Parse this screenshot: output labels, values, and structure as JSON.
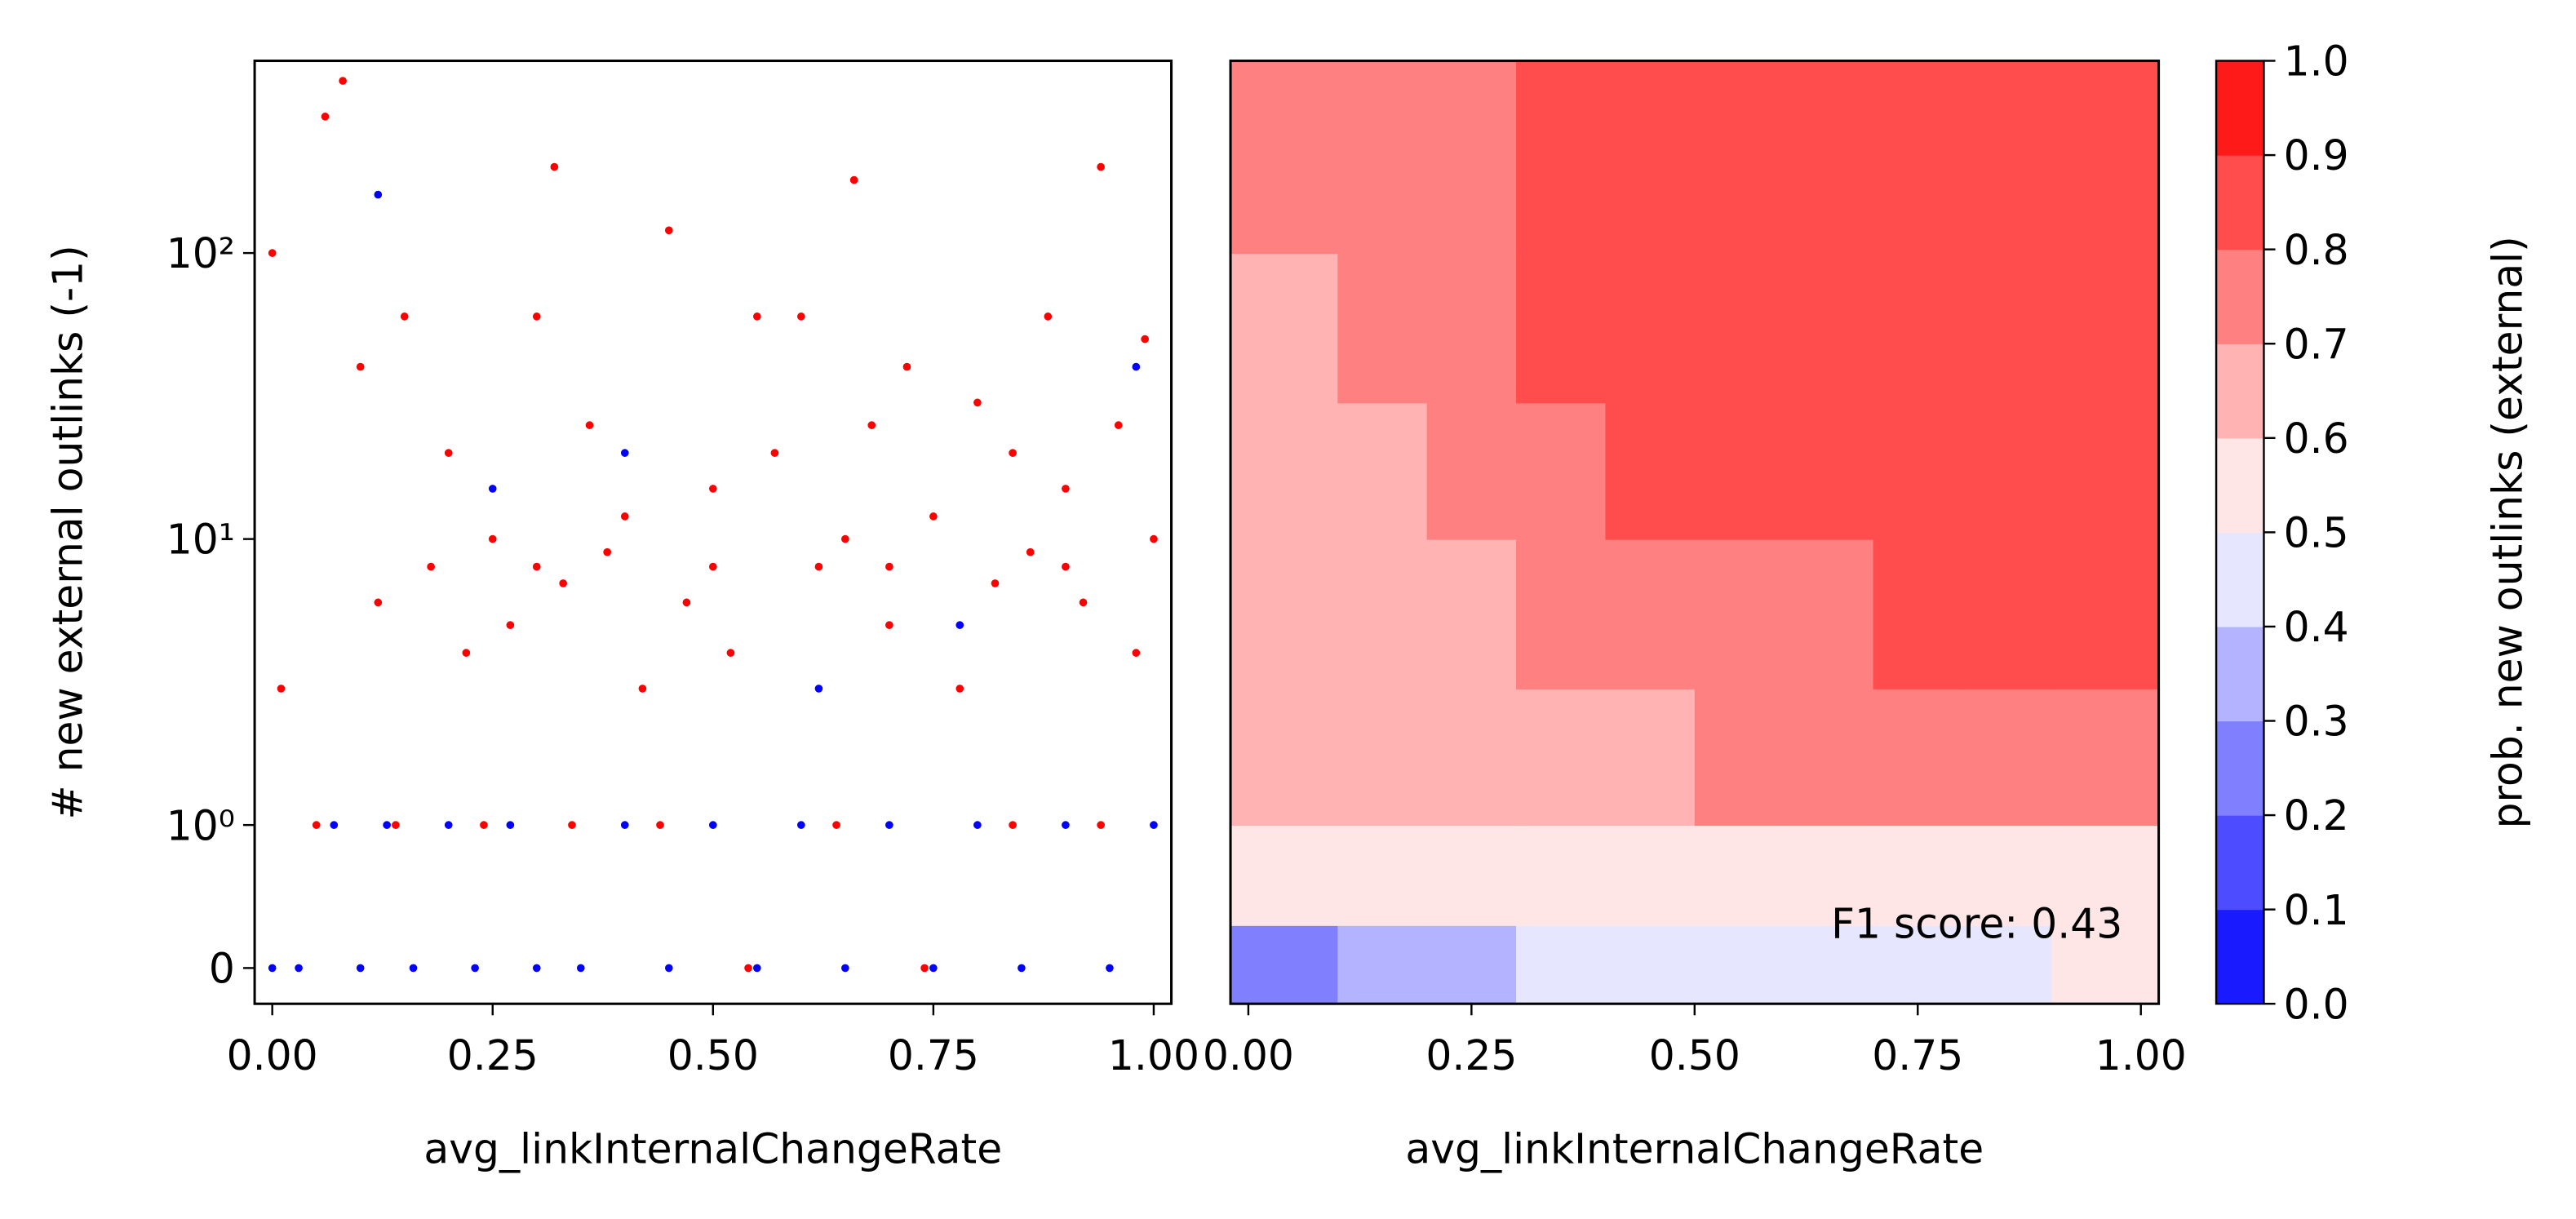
{
  "chart_data": [
    {
      "type": "scatter",
      "ylabel": "# new external outlinks (-1)",
      "xlabel": "avg_linkInternalChangeRate",
      "yscale": "symlog",
      "linthresh": 1,
      "linscale": 0.5,
      "xlim": [
        -0.02,
        1.02
      ],
      "ylim": [
        -0.25,
        470
      ],
      "xticks": [
        {
          "value": 0,
          "label": "0.00"
        },
        {
          "value": 0.25,
          "label": "0.25"
        },
        {
          "value": 0.5,
          "label": "0.50"
        },
        {
          "value": 0.75,
          "label": "0.75"
        },
        {
          "value": 1,
          "label": "1.00"
        }
      ],
      "yticks": [
        0,
        {
          "value": 1,
          "label": "10⁰"
        },
        {
          "value": 10,
          "label": "10¹"
        },
        {
          "value": 100,
          "label": "10²"
        }
      ],
      "series": [
        {
          "color": "#ff0000",
          "x": [
            0.0,
            0.01,
            0.06,
            0.08,
            0.1,
            0.12,
            0.15,
            0.18,
            0.2,
            0.22,
            0.25,
            0.27,
            0.3,
            0.32,
            0.33,
            0.36,
            0.38,
            0.4,
            0.42,
            0.45,
            0.47,
            0.5,
            0.52,
            0.55,
            0.57,
            0.6,
            0.62,
            0.65,
            0.66,
            0.68,
            0.7,
            0.72,
            0.75,
            0.78,
            0.8,
            0.82,
            0.84,
            0.86,
            0.88,
            0.9,
            0.92,
            0.94,
            0.96,
            0.98,
            0.99,
            1.0,
            0.05,
            0.14,
            0.24,
            0.34,
            0.44,
            0.54,
            0.64,
            0.74,
            0.84,
            0.94,
            0.3,
            0.5,
            0.7,
            0.9
          ],
          "values": [
            100,
            3,
            300,
            400,
            40,
            6,
            60,
            8,
            20,
            4,
            10,
            5,
            60,
            200,
            7,
            25,
            9,
            12,
            3,
            120,
            6,
            15,
            4,
            60,
            20,
            60,
            8,
            10,
            180,
            25,
            5,
            40,
            12,
            3,
            30,
            7,
            20,
            9,
            60,
            15,
            6,
            200,
            25,
            4,
            50,
            10,
            1,
            1,
            1,
            1,
            1,
            0,
            1,
            0,
            1,
            1,
            8,
            8,
            8,
            8
          ]
        },
        {
          "color": "#0000ff",
          "x": [
            0.0,
            0.03,
            0.07,
            0.1,
            0.13,
            0.16,
            0.2,
            0.23,
            0.27,
            0.3,
            0.35,
            0.4,
            0.45,
            0.5,
            0.55,
            0.6,
            0.65,
            0.7,
            0.75,
            0.8,
            0.85,
            0.9,
            0.95,
            1.0,
            0.12,
            0.4,
            0.62,
            0.98,
            0.25,
            0.78
          ],
          "values": [
            0,
            0,
            1,
            0,
            1,
            0,
            1,
            0,
            1,
            0,
            0,
            1,
            0,
            1,
            0,
            1,
            0,
            1,
            0,
            1,
            0,
            1,
            0,
            1,
            160,
            20,
            3,
            40,
            15,
            5
          ]
        }
      ]
    },
    {
      "type": "contourf",
      "xlabel": "avg_linkInternalChangeRate",
      "annotation": "F1 score: 0.43",
      "yscale": "symlog",
      "linthresh": 1,
      "linscale": 0.5,
      "xlim": [
        -0.02,
        1.02
      ],
      "ylim": [
        -0.25,
        470
      ],
      "xticks": [
        {
          "value": 0,
          "label": "0.00"
        },
        {
          "value": 0.25,
          "label": "0.25"
        },
        {
          "value": 0.5,
          "label": "0.50"
        },
        {
          "value": 0.75,
          "label": "0.75"
        },
        {
          "value": 1,
          "label": "1.00"
        }
      ],
      "x_edges": [
        -0.02,
        0.1,
        0.2,
        0.3,
        0.4,
        0.5,
        0.6,
        0.7,
        0.8,
        0.9,
        1.02
      ],
      "y_edges": [
        -0.25,
        0.3,
        1,
        3,
        10,
        30,
        100,
        470
      ],
      "z": [
        [
          0.3,
          0.35,
          0.4,
          0.45,
          0.45,
          0.45,
          0.45,
          0.45,
          0.5,
          0.55
        ],
        [
          0.55,
          0.55,
          0.55,
          0.55,
          0.55,
          0.55,
          0.55,
          0.55,
          0.55,
          0.55
        ],
        [
          0.65,
          0.65,
          0.65,
          0.65,
          0.65,
          0.75,
          0.75,
          0.75,
          0.75,
          0.75
        ],
        [
          0.65,
          0.65,
          0.65,
          0.75,
          0.75,
          0.75,
          0.75,
          0.85,
          0.85,
          0.85
        ],
        [
          0.65,
          0.65,
          0.75,
          0.75,
          0.85,
          0.85,
          0.85,
          0.85,
          0.85,
          0.85
        ],
        [
          0.65,
          0.75,
          0.75,
          0.85,
          0.85,
          0.85,
          0.85,
          0.85,
          0.85,
          0.85
        ],
        [
          0.75,
          0.75,
          0.75,
          0.85,
          0.85,
          0.85,
          0.85,
          0.85,
          0.85,
          0.85
        ]
      ],
      "colorbar": {
        "label": "prob. new outlinks (external)",
        "levels": [
          0,
          0.1,
          0.2,
          0.3,
          0.4,
          0.5,
          0.6,
          0.7,
          0.8,
          0.9,
          1
        ],
        "colors": [
          "#1a1aff",
          "#4d4dff",
          "#8080ff",
          "#b3b3ff",
          "#e6e6ff",
          "#ffe6e6",
          "#ffb3b3",
          "#ff8080",
          "#ff4d4d",
          "#ff1a1a"
        ],
        "ticks": [
          {
            "value": 0,
            "label": "0.0"
          },
          {
            "value": 0.1,
            "label": "0.1"
          },
          {
            "value": 0.2,
            "label": "0.2"
          },
          {
            "value": 0.3,
            "label": "0.3"
          },
          {
            "value": 0.4,
            "label": "0.4"
          },
          {
            "value": 0.5,
            "label": "0.5"
          },
          {
            "value": 0.6,
            "label": "0.6"
          },
          {
            "value": 0.7,
            "label": "0.7"
          },
          {
            "value": 0.8,
            "label": "0.8"
          },
          {
            "value": 0.9,
            "label": "0.9"
          },
          {
            "value": 1,
            "label": "1.0"
          }
        ]
      }
    }
  ]
}
